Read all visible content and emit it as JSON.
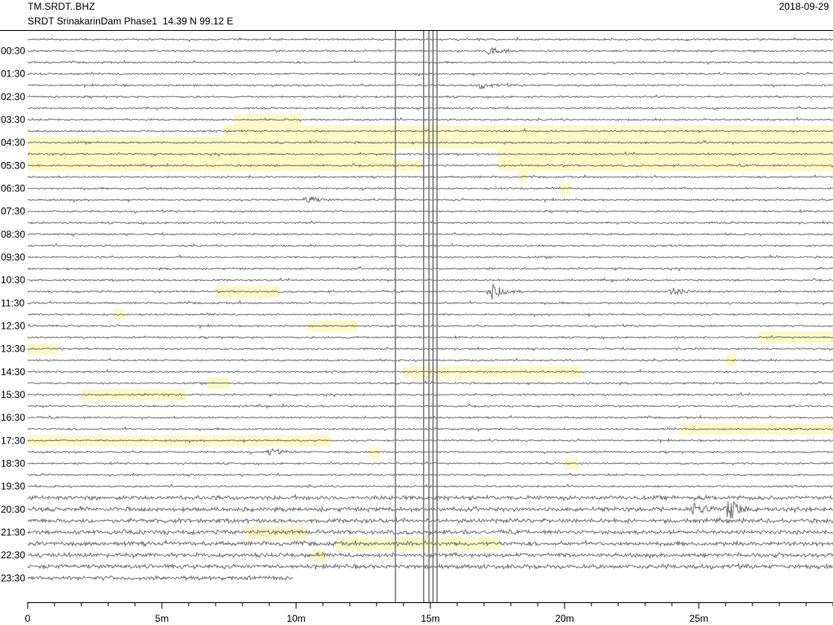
{
  "header": {
    "station": "TM.SRDT..BHZ",
    "location": "SRDT SrinakarinDam Phase1  14.39 N 99.12 E",
    "date": "2018-09-29"
  },
  "colors": {
    "trace": "#777777",
    "highlight": "#fff9c4",
    "axis": "#000000",
    "vertical_line": "#777777"
  },
  "chart_data": {
    "type": "heatmap",
    "title": "TM.SRDT..BHZ",
    "x_axis": {
      "unit": "minutes",
      "range": [
        0,
        30
      ],
      "tick_labels": [
        "0",
        "5m",
        "10m",
        "15m",
        "20m",
        "25m"
      ],
      "tick_values": [
        0,
        5,
        10,
        15,
        20,
        25
      ]
    },
    "y_axis": {
      "tick_labels": [
        "00:30",
        "01:30",
        "02:30",
        "03:30",
        "04:30",
        "05:30",
        "06:30",
        "07:30",
        "08:30",
        "09:30",
        "10:30",
        "11:30",
        "12:30",
        "13:30",
        "14:30",
        "15:30",
        "16:30",
        "17:30",
        "18:30",
        "19:30",
        "20:30",
        "21:30",
        "22:30",
        "23:30"
      ]
    },
    "traces_per_hour": 2,
    "trace_count": 48,
    "last_trace_end_minute": 9.9,
    "vertical_lines_minute": [
      13.7,
      14.75,
      14.95,
      15.1,
      15.25
    ],
    "noisy_traces_from_index": 40,
    "highlight_segments": [
      {
        "trace": 7,
        "start": 7.7,
        "end": 10.2
      },
      {
        "trace": 8,
        "start": 7.3,
        "end": 30.0
      },
      {
        "trace": 9,
        "start": 0.0,
        "end": 30.0
      },
      {
        "trace": 10,
        "start": 0.0,
        "end": 13.6
      },
      {
        "trace": 10,
        "start": 17.5,
        "end": 30.0
      },
      {
        "trace": 11,
        "start": 0.0,
        "end": 14.7
      },
      {
        "trace": 11,
        "start": 17.5,
        "end": 30.0
      },
      {
        "trace": 12,
        "start": 18.3,
        "end": 18.6
      },
      {
        "trace": 13,
        "start": 19.8,
        "end": 20.2
      },
      {
        "trace": 22,
        "start": 7.0,
        "end": 9.4
      },
      {
        "trace": 24,
        "start": 3.2,
        "end": 3.6
      },
      {
        "trace": 25,
        "start": 10.4,
        "end": 12.3
      },
      {
        "trace": 26,
        "start": 27.2,
        "end": 30.0
      },
      {
        "trace": 27,
        "start": 0.0,
        "end": 1.1
      },
      {
        "trace": 28,
        "start": 26.0,
        "end": 26.4
      },
      {
        "trace": 29,
        "start": 14.0,
        "end": 20.6
      },
      {
        "trace": 30,
        "start": 6.7,
        "end": 7.5
      },
      {
        "trace": 31,
        "start": 2.0,
        "end": 5.9
      },
      {
        "trace": 34,
        "start": 24.3,
        "end": 30.0
      },
      {
        "trace": 35,
        "start": 0.0,
        "end": 11.3
      },
      {
        "trace": 36,
        "start": 12.7,
        "end": 13.1
      },
      {
        "trace": 37,
        "start": 20.0,
        "end": 20.5
      },
      {
        "trace": 43,
        "start": 8.1,
        "end": 10.4
      },
      {
        "trace": 44,
        "start": 11.5,
        "end": 17.6
      },
      {
        "trace": 45,
        "start": 10.6,
        "end": 11.1
      }
    ],
    "events": [
      {
        "trace": 1,
        "minute": 17.2,
        "amplitude": 6
      },
      {
        "trace": 4,
        "minute": 16.9,
        "amplitude": 4
      },
      {
        "trace": 14,
        "minute": 10.4,
        "amplitude": 6
      },
      {
        "trace": 22,
        "minute": 17.3,
        "amplitude": 11
      },
      {
        "trace": 22,
        "minute": 24.0,
        "amplitude": 5
      },
      {
        "trace": 36,
        "minute": 9.0,
        "amplitude": 4
      },
      {
        "trace": 41,
        "minute": 26.1,
        "amplitude": 14
      },
      {
        "trace": 41,
        "minute": 24.8,
        "amplitude": 8
      }
    ]
  }
}
